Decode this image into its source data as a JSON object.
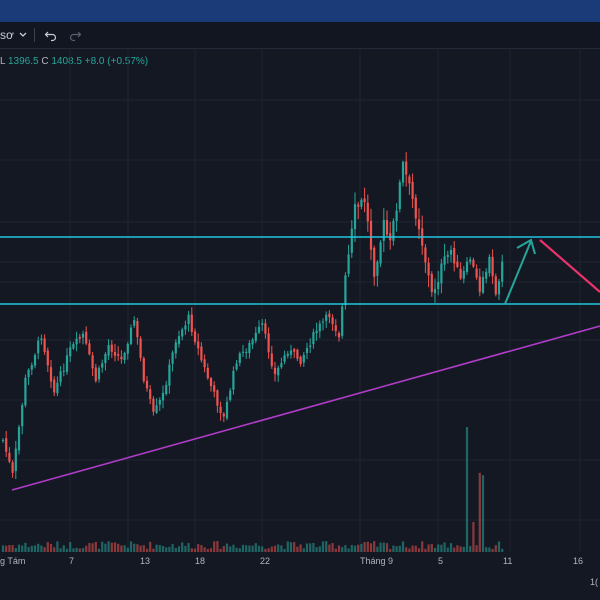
{
  "toolbar": {
    "symbol_fragment": "sơ",
    "chevron_icon": "chevron-down-icon",
    "undo_icon": "undo-icon",
    "redo_icon": "redo-icon"
  },
  "legend": {
    "l_key": "L",
    "l_value": "1396.5",
    "c_key": "C",
    "c_value": "1408.5",
    "change": "+8.0",
    "change_pct": "(+0.57%)"
  },
  "colors": {
    "up": "#26a69a",
    "down": "#ef5350",
    "background": "#141823",
    "topbar": "#1a3a78",
    "horizontal_line": "#22c5e0",
    "trend_line": "#b03cc8",
    "arrow_up": "#26a69a",
    "arrow_down": "#e8336b"
  },
  "x_axis": {
    "labels": [
      "g Tám",
      "7",
      "13",
      "18",
      "22",
      "Tháng 9",
      "5",
      "11",
      "16"
    ],
    "corner_fragment": "1("
  },
  "chart_data": {
    "type": "candlestick",
    "title": "",
    "xlabel": "",
    "ylabel": "",
    "grid": true,
    "annotations": [
      "horizontal line (upper level)",
      "horizontal line (lower level)",
      "rising trend line",
      "arrow up",
      "arrow down"
    ]
  }
}
